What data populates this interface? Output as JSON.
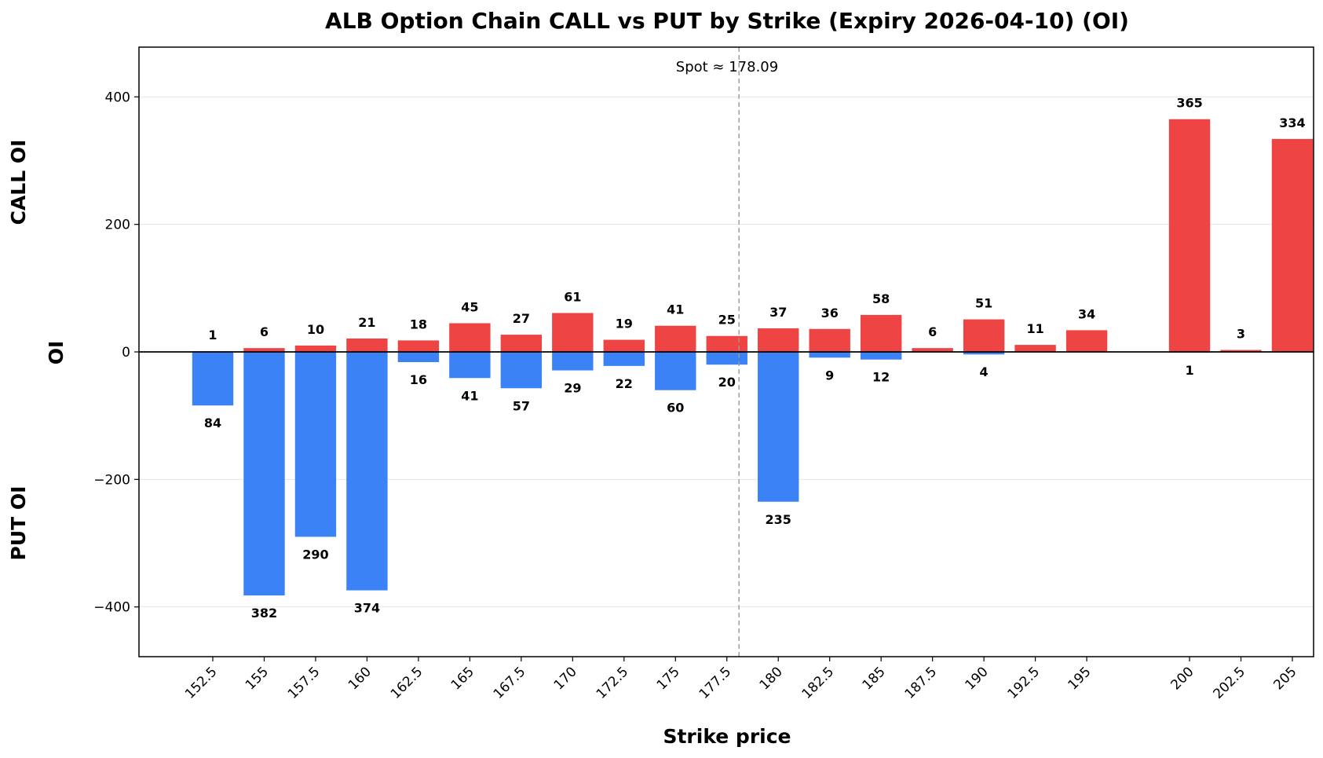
{
  "chart_data": {
    "type": "bar",
    "title": "ALB Option Chain CALL vs PUT by Strike (Expiry 2026-04-10) (OI)",
    "xlabel": "Strike price",
    "ylabel": "OI",
    "side_labels": {
      "top": "CALL OI",
      "bottom": "PUT OI"
    },
    "annotation": "Spot ≈ 178.09",
    "spot": 178.09,
    "categories": [
      "152.5",
      "155",
      "157.5",
      "160",
      "162.5",
      "165",
      "167.5",
      "170",
      "172.5",
      "175",
      "177.5",
      "180",
      "182.5",
      "185",
      "187.5",
      "190",
      "192.5",
      "195",
      "200",
      "202.5",
      "205"
    ],
    "series": [
      {
        "name": "CALL",
        "color": "#ef4444",
        "values": [
          1,
          6,
          10,
          21,
          18,
          45,
          27,
          61,
          19,
          41,
          25,
          37,
          36,
          58,
          6,
          51,
          11,
          34,
          365,
          3,
          334
        ]
      },
      {
        "name": "PUT",
        "color": "#3b82f6",
        "values": [
          84,
          382,
          290,
          374,
          16,
          41,
          57,
          29,
          22,
          60,
          20,
          235,
          9,
          12,
          0,
          4,
          0,
          0,
          1,
          0,
          0
        ]
      }
    ],
    "yticks": [
      "400",
      "200",
      "0",
      "−200",
      "−400"
    ],
    "ytick_values": [
      400,
      200,
      0,
      -200,
      -400
    ],
    "ylim": [
      -478,
      478
    ],
    "grid": true,
    "legend": "none"
  }
}
